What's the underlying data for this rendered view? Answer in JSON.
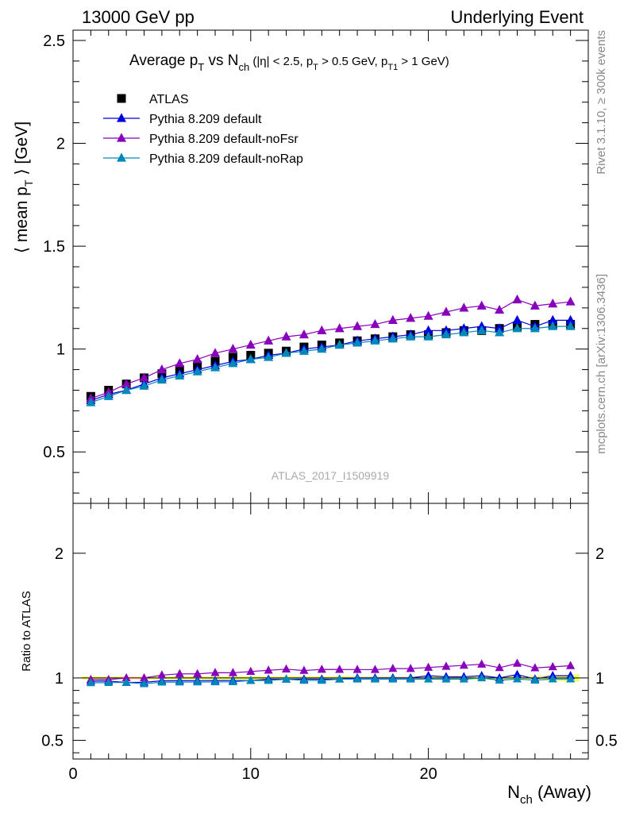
{
  "header": {
    "left": "13000 GeV pp",
    "right": "Underlying Event"
  },
  "side_text": {
    "rivet": "Rivet 3.1.10, ≥ 300k events",
    "mcplots": "mcplots.cern.ch [arXiv:1306.3436]"
  },
  "chart_data": {
    "type": "line",
    "title_parts": {
      "prefix": "Average p",
      "sub1": "T",
      "mid1": " vs N",
      "sub2": "ch",
      "cut1": " (|η| < 2.5, p",
      "sub3": "T",
      "cut2": " > 0.5 GeV, p",
      "sub4": "T1",
      "cut3": " > 1 GeV)"
    },
    "ylabel_parts": {
      "prefix": "⟨ mean p",
      "sub": "T",
      "suffix": " ⟩ [GeV]"
    },
    "xlabel_parts": {
      "prefix": "N",
      "sub": "ch",
      "suffix": " (Away)"
    },
    "ratio_ylabel": "Ratio to ATLAS",
    "watermark": "ATLAS_2017_I1509919",
    "xlim": [
      0,
      29
    ],
    "ylim": [
      0.25,
      2.55
    ],
    "ratio_ylim": [
      0.35,
      2.4
    ],
    "x_ticks": [
      0,
      10,
      20
    ],
    "x_tick_labels": [
      "0",
      "10",
      "20"
    ],
    "y_ticks": [
      0.5,
      1,
      1.5,
      2,
      2.5
    ],
    "y_tick_labels": [
      "0.5",
      "1",
      "1.5",
      "2",
      "2.5"
    ],
    "ratio_y_ticks": [
      0.5,
      1,
      2
    ],
    "ratio_y_tick_labels": [
      "0.5",
      "1",
      "2"
    ],
    "x": [
      1,
      2,
      3,
      4,
      5,
      6,
      7,
      8,
      9,
      10,
      11,
      12,
      13,
      14,
      15,
      16,
      17,
      18,
      19,
      20,
      21,
      22,
      23,
      24,
      25,
      26,
      27,
      28
    ],
    "series": [
      {
        "name": "ATLAS",
        "color": "#000000",
        "marker": "square",
        "values": [
          0.77,
          0.8,
          0.83,
          0.86,
          0.88,
          0.9,
          0.92,
          0.94,
          0.96,
          0.97,
          0.98,
          0.99,
          1.01,
          1.02,
          1.03,
          1.04,
          1.05,
          1.06,
          1.07,
          1.07,
          1.08,
          1.09,
          1.09,
          1.1,
          1.11,
          1.12,
          1.12,
          1.12
        ]
      },
      {
        "name": "Pythia 8.209 default",
        "color": "#0000dd",
        "marker": "triangle",
        "values": [
          0.75,
          0.78,
          0.8,
          0.83,
          0.86,
          0.88,
          0.9,
          0.92,
          0.94,
          0.95,
          0.97,
          0.98,
          1.0,
          1.01,
          1.02,
          1.04,
          1.05,
          1.06,
          1.07,
          1.09,
          1.09,
          1.1,
          1.11,
          1.1,
          1.14,
          1.11,
          1.14,
          1.14
        ]
      },
      {
        "name": "Pythia 8.209 default-noFsr",
        "color": "#8800bb",
        "marker": "triangle",
        "values": [
          0.76,
          0.79,
          0.83,
          0.86,
          0.9,
          0.93,
          0.95,
          0.98,
          1.0,
          1.02,
          1.04,
          1.06,
          1.07,
          1.09,
          1.1,
          1.11,
          1.12,
          1.14,
          1.15,
          1.16,
          1.18,
          1.2,
          1.21,
          1.19,
          1.24,
          1.21,
          1.22,
          1.23
        ]
      },
      {
        "name": "Pythia 8.209 default-noRap",
        "color": "#0088bb",
        "marker": "triangle",
        "values": [
          0.74,
          0.77,
          0.8,
          0.82,
          0.85,
          0.87,
          0.89,
          0.91,
          0.93,
          0.95,
          0.96,
          0.98,
          0.99,
          1.0,
          1.02,
          1.03,
          1.04,
          1.05,
          1.06,
          1.06,
          1.07,
          1.08,
          1.09,
          1.08,
          1.1,
          1.1,
          1.11,
          1.11
        ]
      }
    ],
    "legend_position": "top-left"
  }
}
